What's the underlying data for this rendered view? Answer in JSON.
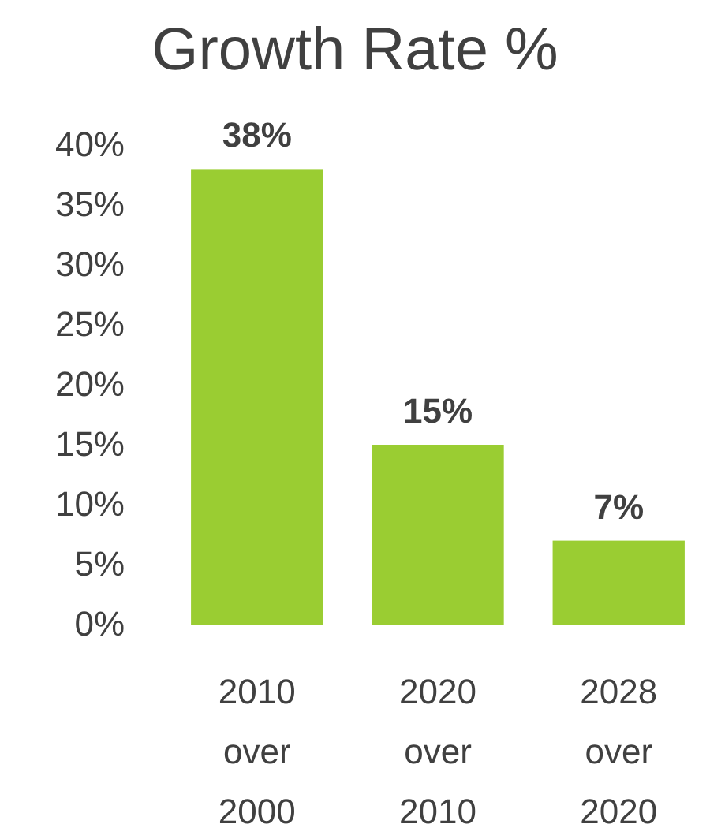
{
  "chart_data": {
    "type": "bar",
    "title": "Growth Rate %",
    "categories": [
      "2010 over 2000",
      "2020 over 2010",
      "2028 over 2020"
    ],
    "values": [
      38,
      15,
      7
    ],
    "color": "#9acd32",
    "value_labels": [
      "38%",
      "15%",
      "7%"
    ],
    "ylim": [
      0,
      40
    ],
    "yticks": [
      {
        "value": 0,
        "label": "0%"
      },
      {
        "value": 5,
        "label": "5%"
      },
      {
        "value": 10,
        "label": "10%"
      },
      {
        "value": 15,
        "label": "15%"
      },
      {
        "value": 20,
        "label": "20%"
      },
      {
        "value": 25,
        "label": "25%"
      },
      {
        "value": 30,
        "label": "30%"
      },
      {
        "value": 35,
        "label": "35%"
      },
      {
        "value": 40,
        "label": "40%"
      }
    ],
    "grid": false
  }
}
